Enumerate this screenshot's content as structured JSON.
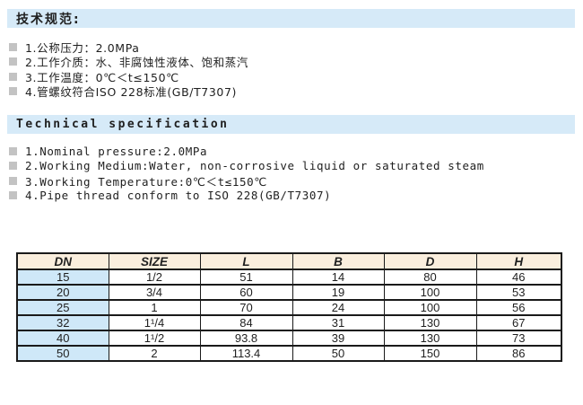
{
  "colors": {
    "section_bar_bg": "#d6eaf8",
    "bullet_square": "#c3c3c3",
    "table_header_bg": "#faeedd",
    "table_dn_column_bg": "#cfe8f8",
    "table_border": "#1a1a1a",
    "text": "#1f1f1f"
  },
  "section_cn": {
    "title": "技术规范:",
    "items": [
      "1.公称压力：2.0MPa",
      "2.工作介质：水、非腐蚀性液体、饱和蒸汽",
      "3.工作温度：0℃＜t≤150℃",
      "4.管螺纹符合ISO 228标准(GB/T7307)"
    ]
  },
  "section_en": {
    "title": "Technical specification",
    "items": [
      "1.Nominal pressure:2.0MPa",
      "2.Working Medium:Water, non-corrosive liquid or saturated steam",
      "3.Working Temperature:0℃＜t≤150℃",
      "4.Pipe thread conform to ISO 228(GB/T7307)"
    ]
  },
  "table": {
    "headers": [
      "DN",
      "SIZE",
      "L",
      "B",
      "D",
      "H"
    ],
    "rows": [
      [
        "15",
        "1/2",
        "51",
        "14",
        "80",
        "46"
      ],
      [
        "20",
        "3/4",
        "60",
        "19",
        "100",
        "53"
      ],
      [
        "25",
        "1",
        "70",
        "24",
        "100",
        "56"
      ],
      [
        "32",
        "1¹/4",
        "84",
        "31",
        "130",
        "67"
      ],
      [
        "40",
        "1¹/2",
        "93.8",
        "39",
        "130",
        "73"
      ],
      [
        "50",
        "2",
        "113.4",
        "50",
        "150",
        "86"
      ]
    ]
  }
}
